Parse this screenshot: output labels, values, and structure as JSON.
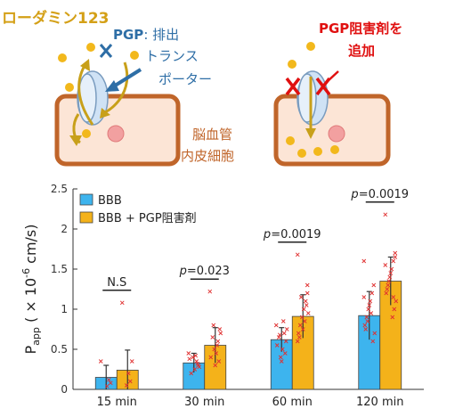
{
  "diagram": {
    "rhodamine_label": "ローダミン123",
    "pgp_bold": "PGP",
    "pgp_line1_rest": ": 排出",
    "pgp_line2": "トランス",
    "pgp_line3": "ポーター",
    "inhibitor_line1": "PGP阻害剤を",
    "inhibitor_line2": "追加",
    "cell_line1": "脳血管",
    "cell_line2": "内皮細胞",
    "colors": {
      "rhodamine": "#f2b81c",
      "pgp_blue": "#2e6ea6",
      "cell_border": "#c0652a",
      "cell_fill": "#fce5d6",
      "nucleus": "#f2a0a0",
      "transporter": "#cfe2f5",
      "inhibitor_red": "#e01010",
      "arrow_gold": "#c8a01a"
    }
  },
  "chart_data": {
    "type": "bar",
    "categories": [
      "15 min",
      "30 min",
      "60 min",
      "120 min"
    ],
    "series": [
      {
        "name": "BBB",
        "color": "#3db4ee",
        "values": [
          0.15,
          0.33,
          0.62,
          0.92
        ],
        "errors": [
          0.15,
          0.12,
          0.15,
          0.3
        ]
      },
      {
        "name": "BBB + PGP阻害剤",
        "color": "#f4b21a",
        "values": [
          0.24,
          0.55,
          0.91,
          1.35
        ],
        "errors": [
          0.25,
          0.22,
          0.27,
          0.3
        ]
      }
    ],
    "ylabel_main": "P",
    "ylabel_sub": "app",
    "ylabel_unit": " ( × 10",
    "ylabel_exp": "-6",
    "ylabel_tail": " cm/s)",
    "ylim": [
      0,
      2.5
    ],
    "yticks": [
      "0",
      "0.5",
      "1",
      "1.5",
      "2",
      "2.5"
    ],
    "significance": [
      {
        "category": "15 min",
        "prefix": "",
        "label": "N.S"
      },
      {
        "category": "30 min",
        "prefix": "p",
        "label": "=0.023"
      },
      {
        "category": "60 min",
        "prefix": "p",
        "label": "=0.0019"
      },
      {
        "category": "120 min",
        "prefix": "p",
        "label": "=0.0019"
      }
    ],
    "points": [
      [
        [
          0.35,
          0.08,
          0.12,
          0.04
        ],
        [
          1.08,
          0.35,
          0.1,
          0.2,
          0.05
        ]
      ],
      [
        [
          0.45,
          0.3,
          0.35,
          0.25,
          0.4,
          0.2,
          0.38,
          0.28,
          0.32,
          0.42
        ],
        [
          1.22,
          0.75,
          0.6,
          0.45,
          0.5,
          0.65,
          0.4,
          0.7,
          0.35,
          0.55,
          0.3,
          0.8
        ]
      ],
      [
        [
          0.8,
          0.6,
          0.7,
          0.5,
          0.4,
          0.65,
          0.55,
          0.75,
          0.45,
          0.85,
          0.35,
          0.68
        ],
        [
          1.68,
          1.2,
          1.1,
          1.0,
          0.9,
          0.8,
          0.7,
          0.95,
          1.05,
          0.85,
          0.75,
          1.15,
          0.65,
          0.6,
          1.3
        ]
      ],
      [
        [
          1.6,
          1.3,
          1.2,
          1.1,
          1.0,
          0.9,
          0.8,
          0.7,
          0.6,
          0.95,
          1.05,
          0.85,
          0.75,
          1.15
        ],
        [
          2.18,
          1.7,
          1.6,
          1.5,
          1.4,
          1.3,
          1.2,
          1.1,
          1.0,
          0.9,
          1.45,
          1.35,
          1.25,
          1.55,
          1.65,
          1.15
        ]
      ]
    ],
    "grid": false,
    "legend_position": "top-left"
  }
}
